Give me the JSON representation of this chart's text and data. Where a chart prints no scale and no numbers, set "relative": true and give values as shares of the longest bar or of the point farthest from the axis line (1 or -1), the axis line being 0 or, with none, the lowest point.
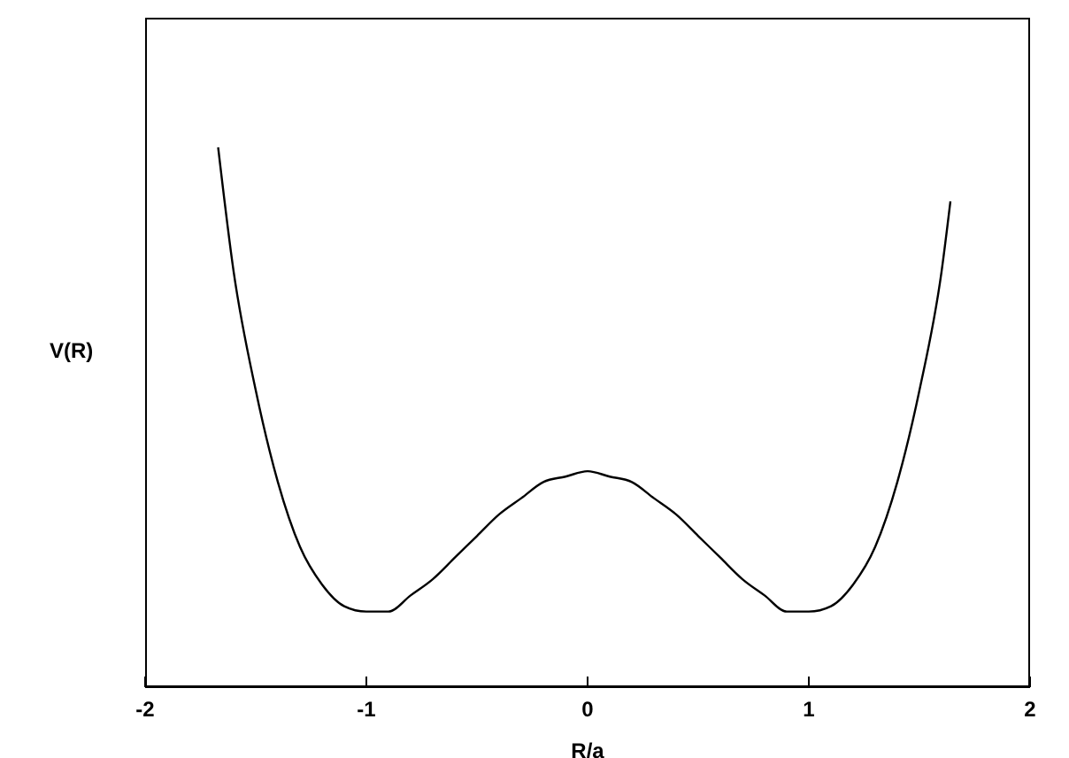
{
  "chart_data": {
    "type": "line",
    "relative": true,
    "xlabel": "R/a",
    "ylabel": "V(R)",
    "xlim": [
      -2,
      2
    ],
    "xticks": [
      -2,
      -1,
      0,
      1,
      2
    ],
    "marker": "none",
    "line_style": "solid",
    "x": [
      -1.67,
      -1.6,
      -1.5,
      -1.4,
      -1.3,
      -1.2,
      -1.1,
      -1,
      -0.9,
      -0.8,
      -0.7,
      -0.6,
      -0.5,
      -0.4,
      -0.3,
      -0.2,
      -0.1,
      0,
      0.1,
      0.2,
      0.3,
      0.4,
      0.5,
      0.6,
      0.7,
      0.8,
      0.9,
      1,
      1.1,
      1.2,
      1.3,
      1.4,
      1.5,
      1.6,
      1.64
    ],
    "series": [
      {
        "color": "#000000",
        "values": [
          1,
          0.77,
          0.55,
          0.38,
          0.26,
          0.19,
          0.15,
          0.14,
          0.14,
          0.17,
          0.2,
          0.24,
          0.28,
          0.32,
          0.35,
          0.38,
          0.39,
          0.4,
          0.39,
          0.38,
          0.35,
          0.32,
          0.28,
          0.24,
          0.2,
          0.17,
          0.14,
          0.14,
          0.15,
          0.19,
          0.26,
          0.38,
          0.55,
          0.77,
          0.9
        ]
      }
    ]
  }
}
